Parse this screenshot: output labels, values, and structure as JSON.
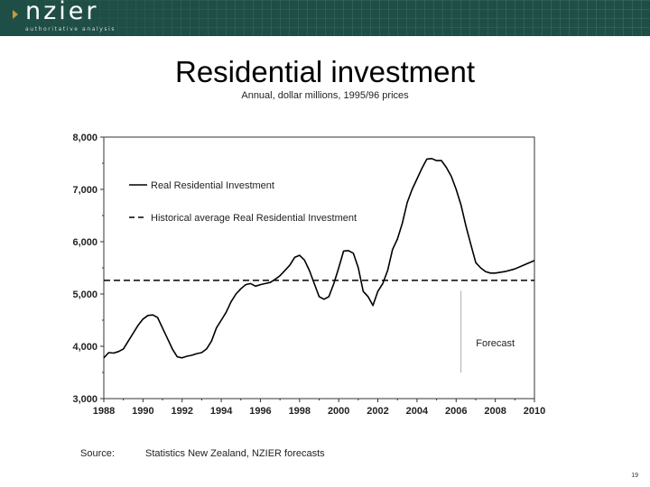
{
  "header": {
    "logo_text": "nzier",
    "tagline": "authoritative analysis",
    "brand_color": "#1f4e46",
    "accent_color": "#c99a3a",
    "logo_icon": "chevron-right-icon"
  },
  "slide": {
    "title": "Residential investment",
    "subtitle": "Annual, dollar millions, 1995/96 prices",
    "source_label": "Source:",
    "source_text": "Statistics New Zealand, NZIER forecasts",
    "page_number": "19"
  },
  "chart_data": {
    "type": "line",
    "title": "",
    "xlabel": "",
    "ylabel": "",
    "xlim": [
      1988,
      2010
    ],
    "ylim": [
      3000,
      8000
    ],
    "x_ticks": [
      "1988",
      "1990",
      "1992",
      "1994",
      "1996",
      "1998",
      "2000",
      "2002",
      "2004",
      "2006",
      "2008",
      "2010"
    ],
    "y_ticks": [
      "3,000",
      "4,000",
      "5,000",
      "6,000",
      "7,000",
      "8,000"
    ],
    "grid": false,
    "legend_position": "top-left",
    "series": [
      {
        "name": "Real Residential Investment",
        "style": "solid",
        "color": "#000000",
        "points": [
          [
            1988.0,
            3780
          ],
          [
            1988.25,
            3880
          ],
          [
            1988.5,
            3870
          ],
          [
            1988.75,
            3900
          ],
          [
            1989.0,
            3950
          ],
          [
            1989.25,
            4100
          ],
          [
            1989.5,
            4250
          ],
          [
            1989.75,
            4400
          ],
          [
            1990.0,
            4520
          ],
          [
            1990.25,
            4590
          ],
          [
            1990.5,
            4600
          ],
          [
            1990.75,
            4550
          ],
          [
            1991.0,
            4350
          ],
          [
            1991.25,
            4150
          ],
          [
            1991.5,
            3950
          ],
          [
            1991.75,
            3800
          ],
          [
            1992.0,
            3780
          ],
          [
            1992.25,
            3810
          ],
          [
            1992.5,
            3830
          ],
          [
            1992.75,
            3860
          ],
          [
            1993.0,
            3880
          ],
          [
            1993.25,
            3950
          ],
          [
            1993.5,
            4100
          ],
          [
            1993.75,
            4350
          ],
          [
            1994.0,
            4500
          ],
          [
            1994.25,
            4650
          ],
          [
            1994.5,
            4850
          ],
          [
            1994.75,
            5000
          ],
          [
            1995.0,
            5100
          ],
          [
            1995.25,
            5180
          ],
          [
            1995.5,
            5200
          ],
          [
            1995.75,
            5150
          ],
          [
            1996.0,
            5180
          ],
          [
            1996.25,
            5200
          ],
          [
            1996.5,
            5220
          ],
          [
            1996.75,
            5280
          ],
          [
            1997.0,
            5350
          ],
          [
            1997.25,
            5450
          ],
          [
            1997.5,
            5550
          ],
          [
            1997.75,
            5700
          ],
          [
            1998.0,
            5740
          ],
          [
            1998.25,
            5650
          ],
          [
            1998.5,
            5450
          ],
          [
            1998.75,
            5200
          ],
          [
            1999.0,
            4950
          ],
          [
            1999.25,
            4900
          ],
          [
            1999.5,
            4950
          ],
          [
            1999.75,
            5200
          ],
          [
            2000.0,
            5500
          ],
          [
            2000.25,
            5820
          ],
          [
            2000.5,
            5830
          ],
          [
            2000.75,
            5780
          ],
          [
            2001.0,
            5500
          ],
          [
            2001.25,
            5050
          ],
          [
            2001.5,
            4950
          ],
          [
            2001.75,
            4780
          ],
          [
            2002.0,
            5050
          ],
          [
            2002.25,
            5200
          ],
          [
            2002.5,
            5450
          ],
          [
            2002.75,
            5850
          ],
          [
            2003.0,
            6050
          ],
          [
            2003.25,
            6350
          ],
          [
            2003.5,
            6750
          ],
          [
            2003.75,
            7000
          ],
          [
            2004.0,
            7200
          ],
          [
            2004.25,
            7400
          ],
          [
            2004.5,
            7580
          ],
          [
            2004.75,
            7590
          ],
          [
            2005.0,
            7550
          ],
          [
            2005.25,
            7550
          ],
          [
            2005.5,
            7420
          ],
          [
            2005.75,
            7250
          ],
          [
            2006.0,
            7000
          ],
          [
            2006.25,
            6700
          ],
          [
            2006.5,
            6300
          ],
          [
            2006.75,
            5950
          ],
          [
            2007.0,
            5600
          ],
          [
            2007.25,
            5500
          ],
          [
            2007.5,
            5430
          ],
          [
            2007.75,
            5400
          ],
          [
            2008.0,
            5400
          ],
          [
            2008.5,
            5430
          ],
          [
            2009.0,
            5480
          ],
          [
            2009.5,
            5560
          ],
          [
            2010.0,
            5640
          ]
        ]
      },
      {
        "name": "Historical average Real Residential Investment",
        "style": "dashed",
        "color": "#000000",
        "points": [
          [
            1988.0,
            5260
          ],
          [
            2010.0,
            5260
          ]
        ]
      }
    ],
    "annotations": [
      {
        "text": "Forecast",
        "x": 2008.0,
        "y": 4000
      }
    ],
    "forecast_divider_x": 2006.25
  }
}
